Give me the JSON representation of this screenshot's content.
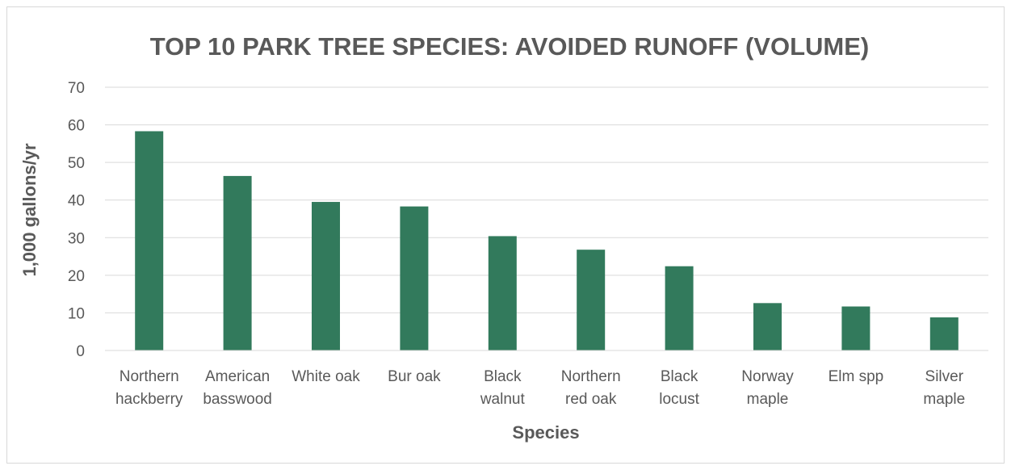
{
  "chart_data": {
    "type": "bar",
    "title": "TOP 10 PARK TREE SPECIES: AVOIDED RUNOFF (VOLUME)",
    "xlabel": "Species",
    "ylabel": "1,000 gallons/yr",
    "ylim": [
      0,
      70
    ],
    "yticks": [
      "0",
      "10",
      "20",
      "30",
      "40",
      "50",
      "60",
      "70"
    ],
    "grid": true,
    "legend": "none",
    "bar_color": "#327a5c",
    "categories": [
      [
        "Northern",
        "hackberry"
      ],
      [
        "American",
        "basswood"
      ],
      [
        "White oak"
      ],
      [
        "Bur oak"
      ],
      [
        "Black",
        "walnut"
      ],
      [
        "Northern",
        "red oak"
      ],
      [
        "Black",
        "locust"
      ],
      [
        "Norway",
        "maple"
      ],
      [
        "Elm spp"
      ],
      [
        "Silver",
        "maple"
      ]
    ],
    "values": [
      58.3,
      46.4,
      39.5,
      38.3,
      30.4,
      26.8,
      22.4,
      12.6,
      11.7,
      8.8
    ]
  }
}
